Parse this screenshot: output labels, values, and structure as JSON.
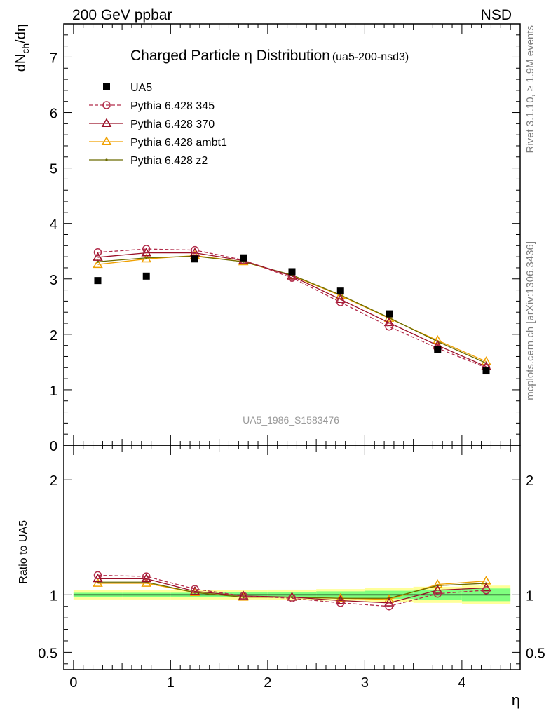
{
  "header": {
    "left": "200 GeV ppbar",
    "right": "NSD"
  },
  "side_labels": {
    "top": "Rivet 3.1.10, ≥ 1.9M events",
    "bottom": "mcplots.cern.ch [arXiv:1306.3436]"
  },
  "chart_data": {
    "type": "line",
    "title_main": "Charged Particle η Distribution",
    "title_sub": "(ua5-200-nsd3)",
    "ylabel": "dN_ch/dη",
    "xlabel": "η",
    "ratio_ylabel": "Ratio to UA5",
    "watermark": "UA5_1986_S1583476",
    "xlim": [
      -0.1,
      4.6
    ],
    "main_ylim": [
      0,
      7.6
    ],
    "ratio_ylim": [
      0.35,
      2.3
    ],
    "x_ticks": [
      "0",
      "1",
      "2",
      "3",
      "4"
    ],
    "main_y_ticks": [
      "0",
      "1",
      "2",
      "3",
      "4",
      "5",
      "6",
      "7"
    ],
    "ratio_y_ticks": [
      "0.5",
      "1",
      "2"
    ],
    "x": [
      0.25,
      0.75,
      1.25,
      1.75,
      2.25,
      2.75,
      3.25,
      3.75,
      4.25
    ],
    "data": {
      "name": "UA5",
      "values": [
        2.97,
        3.05,
        3.36,
        3.38,
        3.13,
        2.78,
        2.37,
        1.73,
        1.34
      ]
    },
    "series": [
      {
        "name": "Pythia 6.428 345",
        "color": "#b22c4a",
        "marker": "circle",
        "dashed": true,
        "values": [
          3.48,
          3.54,
          3.52,
          3.34,
          3.02,
          2.58,
          2.14,
          1.75,
          1.4
        ],
        "ratio": [
          1.17,
          1.16,
          1.05,
          0.99,
          0.97,
          0.93,
          0.9,
          1.01,
          1.04
        ]
      },
      {
        "name": "Pythia 6.428 370",
        "color": "#9a1028",
        "marker": "triangle",
        "dashed": false,
        "values": [
          3.39,
          3.47,
          3.47,
          3.33,
          3.05,
          2.63,
          2.21,
          1.8,
          1.42
        ],
        "ratio": [
          1.14,
          1.14,
          1.03,
          0.99,
          0.98,
          0.95,
          0.93,
          1.04,
          1.06
        ]
      },
      {
        "name": "Pythia 6.428 ambt1",
        "color": "#f0a000",
        "marker": "triangle",
        "dashed": false,
        "values": [
          3.26,
          3.36,
          3.42,
          3.31,
          3.06,
          2.7,
          2.29,
          1.89,
          1.51
        ],
        "ratio": [
          1.1,
          1.1,
          1.02,
          0.98,
          0.98,
          0.97,
          0.96,
          1.09,
          1.12
        ]
      },
      {
        "name": "Pythia 6.428 z2",
        "color": "#6b6b00",
        "marker": "dot",
        "dashed": false,
        "values": [
          3.31,
          3.38,
          3.41,
          3.31,
          3.07,
          2.71,
          2.3,
          1.87,
          1.48
        ],
        "ratio": [
          1.11,
          1.11,
          1.02,
          0.98,
          0.98,
          0.97,
          0.97,
          1.08,
          1.1
        ]
      }
    ],
    "uncertainty_band": {
      "x_edges": [
        0.0,
        0.5,
        1.0,
        1.5,
        2.0,
        2.5,
        3.0,
        3.5,
        4.0,
        4.5
      ],
      "stat": [
        0.018,
        0.018,
        0.018,
        0.022,
        0.025,
        0.03,
        0.035,
        0.045,
        0.055
      ],
      "total": [
        0.04,
        0.04,
        0.04,
        0.04,
        0.045,
        0.05,
        0.06,
        0.07,
        0.08
      ]
    },
    "colors": {
      "band_total": "#ffff99",
      "band_stat": "#7fff7f",
      "data": "#000000"
    }
  }
}
